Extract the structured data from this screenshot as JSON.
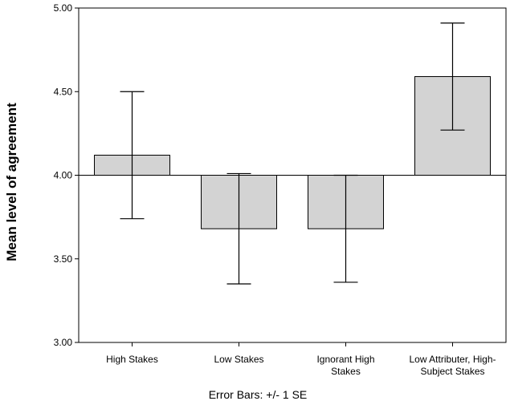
{
  "chart_data": {
    "type": "bar",
    "baseline": 4.0,
    "categories": [
      [
        "High Stakes"
      ],
      [
        "Low Stakes"
      ],
      [
        "Ignorant High",
        "Stakes"
      ],
      [
        "Low Attributer, High-",
        "Subject Stakes"
      ]
    ],
    "values": [
      4.12,
      3.68,
      3.68,
      4.59
    ],
    "error_low": [
      3.74,
      3.35,
      3.36,
      4.27
    ],
    "error_high": [
      4.5,
      4.01,
      4.0,
      4.91
    ],
    "ylabel": "Mean level of agreement",
    "ylim": [
      3.0,
      5.0
    ],
    "yticks": [
      "3.00",
      "3.50",
      "4.00",
      "4.50",
      "5.00"
    ],
    "footnote": "Error Bars: +/- 1 SE",
    "bar_color": "#d3d3d3",
    "grid": false
  }
}
